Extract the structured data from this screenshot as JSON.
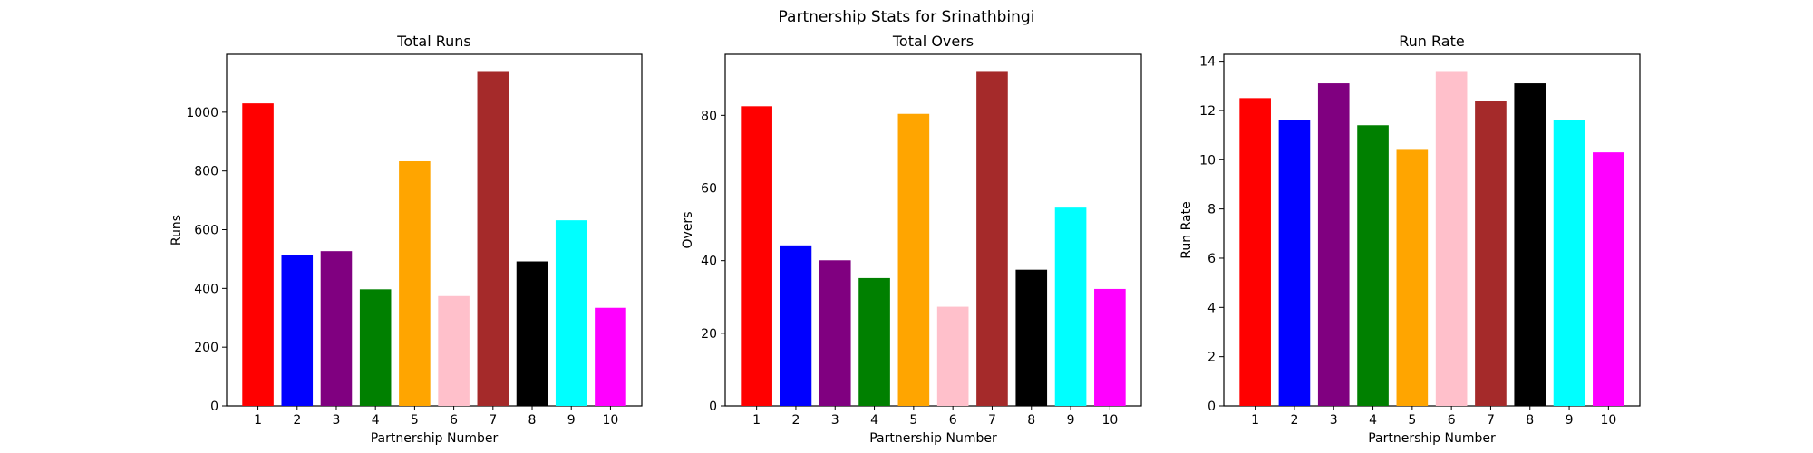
{
  "figure": {
    "suptitle": "Partnership Stats for Srinathbingi"
  },
  "chart_data": [
    {
      "type": "bar",
      "title": "Total Runs",
      "xlabel": "Partnership Number",
      "ylabel": "Runs",
      "categories": [
        "1",
        "2",
        "3",
        "4",
        "5",
        "6",
        "7",
        "8",
        "9",
        "10"
      ],
      "values": [
        1030,
        515,
        527,
        397,
        833,
        374,
        1140,
        492,
        632,
        334
      ],
      "colors": [
        "#ff0000",
        "#0000ff",
        "#800080",
        "#008000",
        "#ffa500",
        "#ffc0cb",
        "#a52a2a",
        "#000000",
        "#00ffff",
        "#ff00ff"
      ],
      "ylim": [
        0,
        1197
      ],
      "yticks": [
        0,
        200,
        400,
        600,
        800,
        1000
      ],
      "ytick_labels": [
        "0",
        "200",
        "400",
        "600",
        "800",
        "1000"
      ]
    },
    {
      "type": "bar",
      "title": "Total Overs",
      "xlabel": "Partnership Number",
      "ylabel": "Overs",
      "categories": [
        "1",
        "2",
        "3",
        "4",
        "5",
        "6",
        "7",
        "8",
        "9",
        "10"
      ],
      "values": [
        82.5,
        44.2,
        40.1,
        35.2,
        80.4,
        27.3,
        92.2,
        37.5,
        54.6,
        32.2
      ],
      "colors": [
        "#ff0000",
        "#0000ff",
        "#800080",
        "#008000",
        "#ffa500",
        "#ffc0cb",
        "#a52a2a",
        "#000000",
        "#00ffff",
        "#ff00ff"
      ],
      "ylim": [
        0,
        96.8
      ],
      "yticks": [
        0,
        20,
        40,
        60,
        80
      ],
      "ytick_labels": [
        "0",
        "20",
        "40",
        "60",
        "80"
      ]
    },
    {
      "type": "bar",
      "title": "Run Rate",
      "xlabel": "Partnership Number",
      "ylabel": "Run Rate",
      "categories": [
        "1",
        "2",
        "3",
        "4",
        "5",
        "6",
        "7",
        "8",
        "9",
        "10"
      ],
      "values": [
        12.5,
        11.6,
        13.1,
        11.4,
        10.4,
        13.6,
        12.4,
        13.1,
        11.6,
        10.3
      ],
      "colors": [
        "#ff0000",
        "#0000ff",
        "#800080",
        "#008000",
        "#ffa500",
        "#ffc0cb",
        "#a52a2a",
        "#000000",
        "#00ffff",
        "#ff00ff"
      ],
      "ylim": [
        0,
        14.28
      ],
      "yticks": [
        0,
        2,
        4,
        6,
        8,
        10,
        12,
        14
      ],
      "ytick_labels": [
        "0",
        "2",
        "4",
        "6",
        "8",
        "10",
        "12",
        "14"
      ]
    }
  ]
}
